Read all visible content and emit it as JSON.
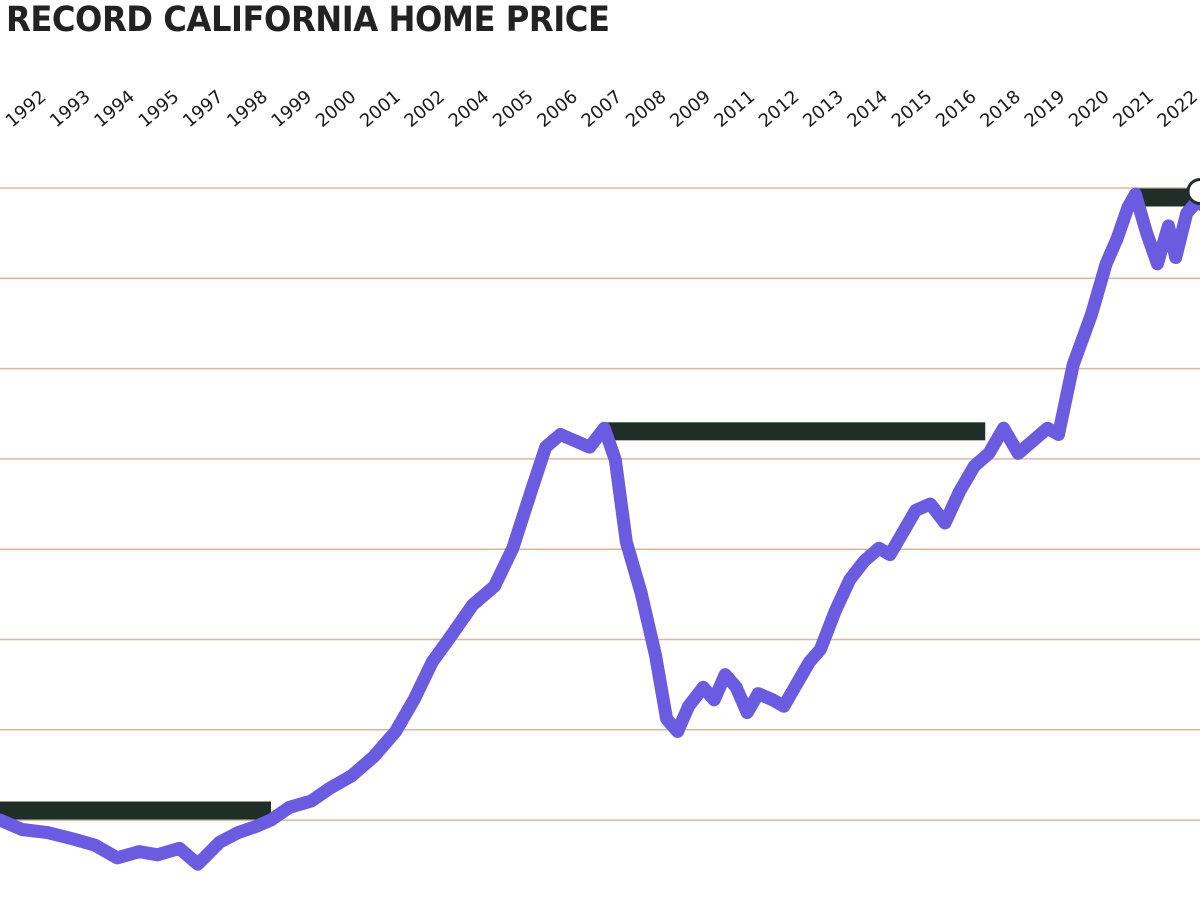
{
  "title": "RECORD CALIFORNIA HOME PRICE",
  "colors": {
    "line": "#6a5be0",
    "record_bar": "#1f2f27",
    "grid": "#d8b7a2",
    "marker_fill": "#ffffff",
    "text": "#222222"
  },
  "chart_data": {
    "type": "line",
    "title": "RECORD CALIFORNIA HOME PRICE",
    "xlabel": "",
    "ylabel": "",
    "x_tick_labels": [
      "1992",
      "1993",
      "1994",
      "1995",
      "1997",
      "1998",
      "1999",
      "2000",
      "2001",
      "2002",
      "2004",
      "2005",
      "2006",
      "2007",
      "2008",
      "2009",
      "2011",
      "2012",
      "2013",
      "2014",
      "2015",
      "2016",
      "2018",
      "2019",
      "2020",
      "2021",
      "2022"
    ],
    "y_unit": "relative level (0-100, top gridline = 100)",
    "grid": true,
    "series": [
      {
        "points": [
          [
            1991.0,
            0
          ],
          [
            1991.6,
            -1.5
          ],
          [
            1992.3,
            -2
          ],
          [
            1993.0,
            -3
          ],
          [
            1993.6,
            -4
          ],
          [
            1994.2,
            -6
          ],
          [
            1994.8,
            -5
          ],
          [
            1995.3,
            -5.5
          ],
          [
            1995.9,
            -4.5
          ],
          [
            1996.4,
            -7
          ],
          [
            1997.0,
            -3.5
          ],
          [
            1997.5,
            -2
          ],
          [
            1998.0,
            -1
          ],
          [
            1998.4,
            0
          ],
          [
            1998.9,
            2
          ],
          [
            1999.5,
            3
          ],
          [
            2000.0,
            5
          ],
          [
            2000.6,
            7
          ],
          [
            2001.2,
            10
          ],
          [
            2001.8,
            14
          ],
          [
            2002.3,
            19
          ],
          [
            2002.8,
            25
          ],
          [
            2003.3,
            29
          ],
          [
            2003.9,
            34
          ],
          [
            2004.5,
            37
          ],
          [
            2005.0,
            43
          ],
          [
            2005.5,
            52
          ],
          [
            2005.9,
            59
          ],
          [
            2006.3,
            61
          ],
          [
            2006.7,
            60
          ],
          [
            2007.1,
            59
          ],
          [
            2007.5,
            62
          ],
          [
            2007.8,
            57
          ],
          [
            2008.1,
            44
          ],
          [
            2008.5,
            36
          ],
          [
            2008.9,
            26
          ],
          [
            2009.2,
            16
          ],
          [
            2009.5,
            14
          ],
          [
            2009.8,
            18
          ],
          [
            2010.2,
            21
          ],
          [
            2010.5,
            19
          ],
          [
            2010.8,
            23
          ],
          [
            2011.1,
            21
          ],
          [
            2011.4,
            17
          ],
          [
            2011.7,
            20
          ],
          [
            2012.1,
            19
          ],
          [
            2012.4,
            18
          ],
          [
            2012.8,
            22
          ],
          [
            2013.1,
            25
          ],
          [
            2013.4,
            27
          ],
          [
            2013.8,
            33
          ],
          [
            2014.2,
            38
          ],
          [
            2014.6,
            41
          ],
          [
            2015.0,
            43
          ],
          [
            2015.3,
            42
          ],
          [
            2015.7,
            46
          ],
          [
            2016.0,
            49
          ],
          [
            2016.4,
            50
          ],
          [
            2016.8,
            47
          ],
          [
            2017.2,
            52
          ],
          [
            2017.6,
            56
          ],
          [
            2018.0,
            58
          ],
          [
            2018.4,
            62
          ],
          [
            2018.8,
            58
          ],
          [
            2019.2,
            60
          ],
          [
            2019.6,
            62
          ],
          [
            2019.9,
            61
          ],
          [
            2020.3,
            72
          ],
          [
            2020.8,
            80
          ],
          [
            2021.2,
            88
          ],
          [
            2021.5,
            92
          ],
          [
            2021.8,
            97
          ],
          [
            2022.0,
            99
          ],
          [
            2022.3,
            93
          ],
          [
            2022.6,
            88
          ],
          [
            2022.9,
            94
          ],
          [
            2023.1,
            89
          ],
          [
            2023.4,
            96
          ],
          [
            2023.7,
            98
          ],
          [
            2023.9,
            97
          ]
        ]
      }
    ],
    "record_plateaus": [
      {
        "from": 1991.0,
        "to": 1998.4,
        "level": 1.5
      },
      {
        "from": 2007.5,
        "to": 2017.9,
        "level": 61.5
      },
      {
        "from": 2022.0,
        "to": 2023.7,
        "level": 98.5
      }
    ],
    "ylim": [
      -8,
      100
    ],
    "xlim": [
      1991.0,
      2023.9
    ]
  }
}
